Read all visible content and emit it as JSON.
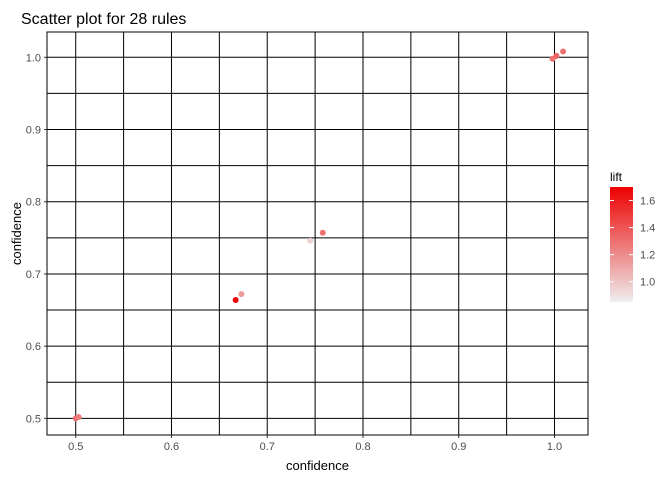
{
  "chart_data": {
    "type": "scatter",
    "title": "Scatter plot for 28 rules",
    "xlabel": "confidence",
    "ylabel": "confidence",
    "xlim": [
      0.47,
      1.035
    ],
    "ylim": [
      0.477,
      1.035
    ],
    "x_ticks": [
      0.5,
      0.6,
      0.7,
      0.8,
      0.9,
      1.0
    ],
    "x_tick_labels": [
      "0.5",
      "0.6",
      "0.7",
      "0.8",
      "0.9",
      "1.0"
    ],
    "y_ticks": [
      0.5,
      0.6,
      0.7,
      0.8,
      0.9,
      1.0
    ],
    "y_tick_labels": [
      "0.5",
      "0.6",
      "0.7",
      "0.8",
      "0.9",
      "1.0"
    ],
    "grid": true,
    "points": [
      {
        "x": 0.5,
        "y": 0.5,
        "lift": 1.3
      },
      {
        "x": 0.503,
        "y": 0.502,
        "lift": 1.25
      },
      {
        "x": 0.667,
        "y": 0.664,
        "lift": 1.68
      },
      {
        "x": 0.673,
        "y": 0.672,
        "lift": 1.15
      },
      {
        "x": 0.745,
        "y": 0.746,
        "lift": 0.95
      },
      {
        "x": 0.758,
        "y": 0.757,
        "lift": 1.3
      },
      {
        "x": 0.998,
        "y": 0.998,
        "lift": 1.3
      },
      {
        "x": 1.002,
        "y": 1.002,
        "lift": 1.35
      },
      {
        "x": 1.009,
        "y": 1.008,
        "lift": 1.3
      }
    ],
    "legend": {
      "title": "lift",
      "position": "right",
      "ticks": [
        1.0,
        1.2,
        1.4,
        1.6
      ],
      "tick_labels": [
        "1.0",
        "1.2",
        "1.4",
        "1.6"
      ],
      "range": [
        0.85,
        1.7
      ],
      "color_low": "#eeeeee",
      "color_high": "#ee0000"
    }
  }
}
